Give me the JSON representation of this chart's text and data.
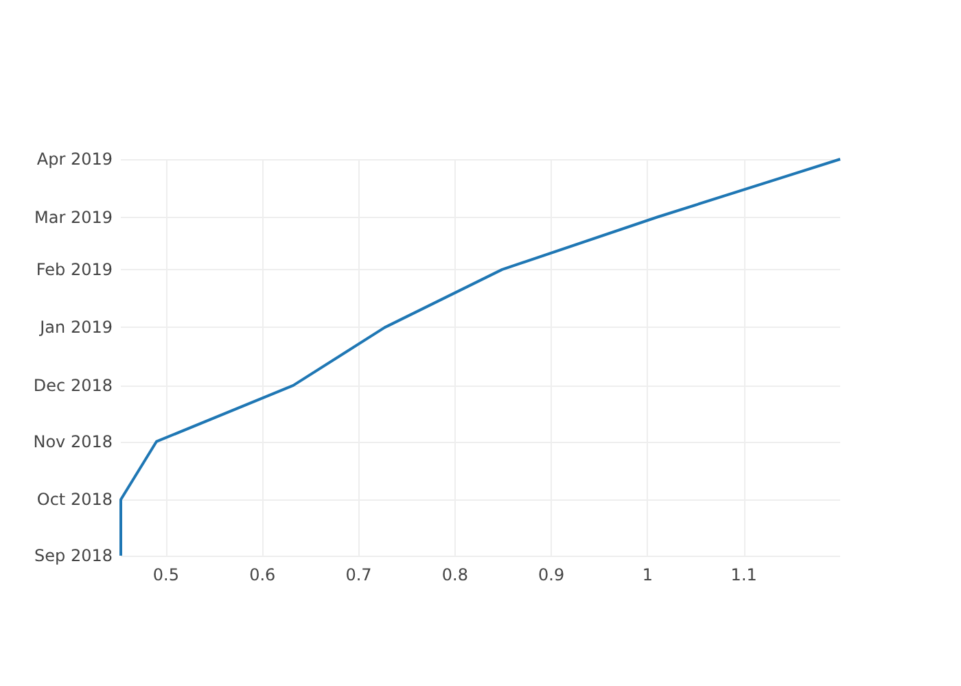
{
  "chart_data": {
    "type": "line",
    "orientation": "horizontal",
    "x": [
      "2018-09-01",
      "2018-10-01",
      "2018-11-01",
      "2018-12-01",
      "2019-01-01",
      "2019-02-01",
      "2019-03-01",
      "2019-04-01"
    ],
    "series": [
      {
        "color": "#1f77b4",
        "values": [
          0.453,
          0.453,
          0.49,
          0.632,
          0.727,
          0.849,
          1.01,
          1.2
        ]
      }
    ],
    "xlim": [
      0.453,
      1.2
    ],
    "xticks": [
      0.5,
      0.6,
      0.7,
      0.8,
      0.9,
      1,
      1.1
    ],
    "ylim": [
      "2018-09-01",
      "2019-04-01"
    ],
    "yticks": [
      {
        "value": "2018-09-01",
        "label": "Sep 2018"
      },
      {
        "value": "2018-10-01",
        "label": "Oct 2018"
      },
      {
        "value": "2018-11-01",
        "label": "Nov 2018"
      },
      {
        "value": "2018-12-01",
        "label": "Dec 2018"
      },
      {
        "value": "2019-01-01",
        "label": "Jan 2019"
      },
      {
        "value": "2019-02-01",
        "label": "Feb 2019"
      },
      {
        "value": "2019-03-01",
        "label": "Mar 2019"
      },
      {
        "value": "2019-04-01",
        "label": "Apr 2019"
      }
    ],
    "grid": true,
    "marker": "none",
    "line_style": "solid"
  }
}
